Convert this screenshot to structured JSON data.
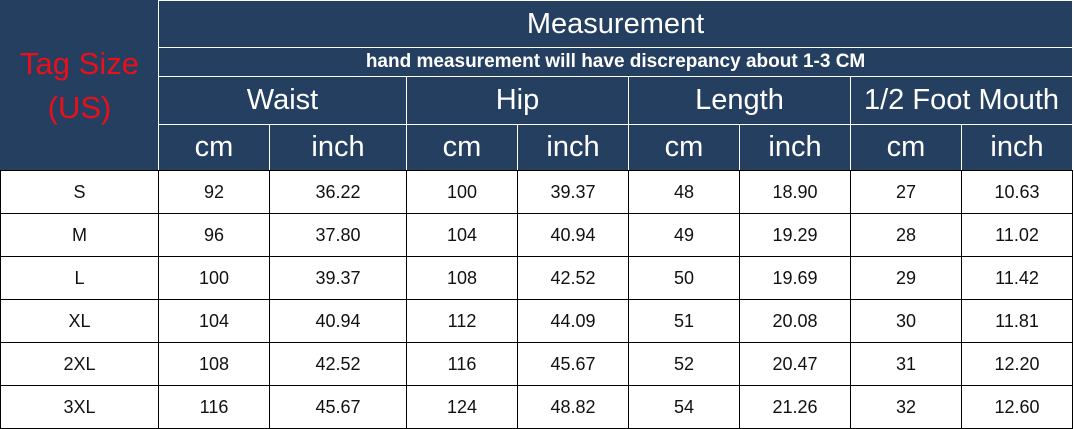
{
  "header": {
    "tag_size": "Tag Size",
    "tag_size_region": "(US)",
    "title": "Measurement",
    "note": "hand measurement will have discrepancy about 1-3 CM",
    "groups": [
      "Waist",
      "Hip",
      "Length",
      "1/2 Foot Mouth"
    ],
    "units": [
      "cm",
      "inch"
    ]
  },
  "colors": {
    "header_bg": "#243f60",
    "tag_text": "#e8101a",
    "header_text": "#ffffff"
  },
  "rows": [
    [
      "S",
      "92",
      "36.22",
      "100",
      "39.37",
      "48",
      "18.90",
      "27",
      "10.63"
    ],
    [
      "M",
      "96",
      "37.80",
      "104",
      "40.94",
      "49",
      "19.29",
      "28",
      "11.02"
    ],
    [
      "L",
      "100",
      "39.37",
      "108",
      "42.52",
      "50",
      "19.69",
      "29",
      "11.42"
    ],
    [
      "XL",
      "104",
      "40.94",
      "112",
      "44.09",
      "51",
      "20.08",
      "30",
      "11.81"
    ],
    [
      "2XL",
      "108",
      "42.52",
      "116",
      "45.67",
      "52",
      "20.47",
      "31",
      "12.20"
    ],
    [
      "3XL",
      "116",
      "45.67",
      "124",
      "48.82",
      "54",
      "21.26",
      "32",
      "12.60"
    ]
  ]
}
